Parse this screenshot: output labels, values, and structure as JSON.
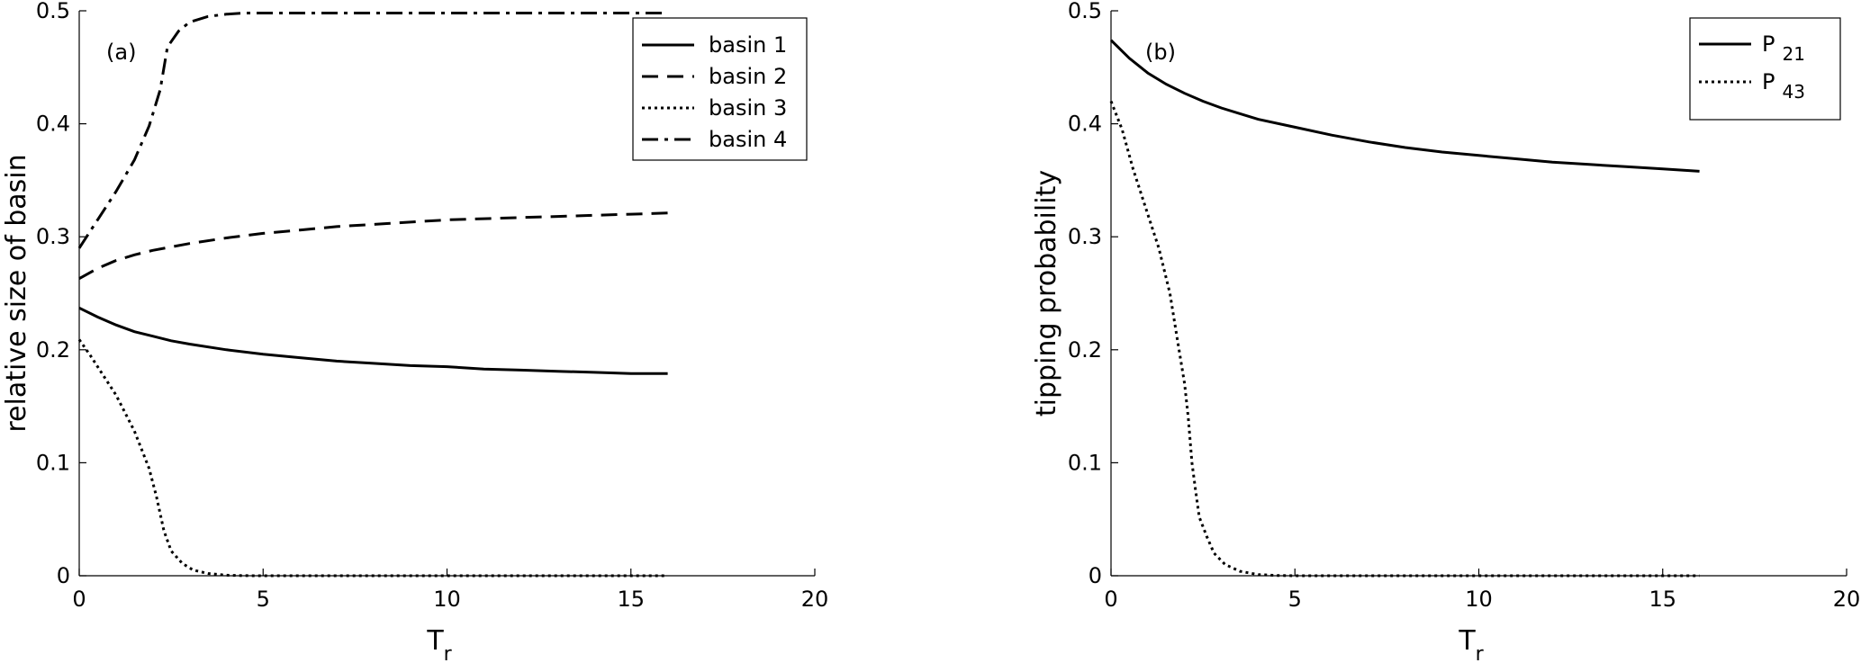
{
  "chart_data": [
    {
      "type": "line",
      "panel_label": "(a)",
      "xlabel": "T",
      "xlabel_sub": "r",
      "ylabel": "relative size of basin",
      "xlim": [
        0,
        20
      ],
      "ylim": [
        0,
        0.5
      ],
      "xticks": [
        0,
        5,
        10,
        15,
        20
      ],
      "yticks": [
        0,
        0.1,
        0.2,
        0.3,
        0.4,
        0.5
      ],
      "xtick_labels": [
        "0",
        "5",
        "10",
        "15",
        "20"
      ],
      "ytick_labels": [
        "0",
        "0.1",
        "0.2",
        "0.3",
        "0.4",
        "0.5"
      ],
      "legend_position": "top-right",
      "series": [
        {
          "name": "basin 1",
          "style": "solid",
          "x": [
            0,
            0.5,
            1,
            1.5,
            2,
            2.5,
            3,
            4,
            5,
            6,
            7,
            8,
            9,
            10,
            11,
            12,
            13,
            14,
            15,
            16
          ],
          "y": [
            0.237,
            0.229,
            0.222,
            0.216,
            0.212,
            0.208,
            0.205,
            0.2,
            0.196,
            0.193,
            0.19,
            0.188,
            0.186,
            0.185,
            0.183,
            0.182,
            0.181,
            0.18,
            0.179,
            0.179
          ]
        },
        {
          "name": "basin 2",
          "style": "dashed",
          "x": [
            0,
            0.5,
            1,
            1.5,
            2,
            2.5,
            3,
            4,
            5,
            6,
            7,
            8,
            9,
            10,
            11,
            12,
            13,
            14,
            15,
            16
          ],
          "y": [
            0.263,
            0.272,
            0.279,
            0.284,
            0.288,
            0.291,
            0.294,
            0.299,
            0.303,
            0.306,
            0.309,
            0.311,
            0.313,
            0.315,
            0.316,
            0.317,
            0.318,
            0.319,
            0.32,
            0.321
          ]
        },
        {
          "name": "basin 3",
          "style": "dotted",
          "x": [
            0,
            0.3,
            0.6,
            1,
            1.5,
            1.9,
            2.1,
            2.3,
            2.5,
            2.8,
            3.1,
            3.5,
            4,
            4.5,
            5,
            6,
            8,
            10,
            12,
            14,
            16
          ],
          "y": [
            0.209,
            0.195,
            0.18,
            0.16,
            0.128,
            0.095,
            0.07,
            0.04,
            0.022,
            0.011,
            0.005,
            0.002,
            0.0005,
            0.0001,
            0,
            0,
            0,
            0,
            0,
            0,
            0
          ]
        },
        {
          "name": "basin 4",
          "style": "dashdot",
          "x": [
            0,
            0.5,
            1,
            1.5,
            1.9,
            2.2,
            2.4,
            2.7,
            3,
            3.5,
            4,
            4.5,
            5,
            6,
            8,
            10,
            12,
            14,
            16
          ],
          "y": [
            0.29,
            0.315,
            0.34,
            0.368,
            0.398,
            0.43,
            0.468,
            0.482,
            0.49,
            0.495,
            0.497,
            0.498,
            0.498,
            0.498,
            0.498,
            0.498,
            0.498,
            0.498,
            0.498
          ]
        }
      ]
    },
    {
      "type": "line",
      "panel_label": "(b)",
      "xlabel": "T",
      "xlabel_sub": "r",
      "ylabel": "tipping probability",
      "xlim": [
        0,
        20
      ],
      "ylim": [
        0,
        0.5
      ],
      "xticks": [
        0,
        5,
        10,
        15,
        20
      ],
      "yticks": [
        0,
        0.1,
        0.2,
        0.3,
        0.4,
        0.5
      ],
      "xtick_labels": [
        "0",
        "5",
        "10",
        "15",
        "20"
      ],
      "ytick_labels": [
        "0",
        "0.1",
        "0.2",
        "0.3",
        "0.4",
        "0.5"
      ],
      "legend_position": "top-right",
      "series": [
        {
          "name": "P",
          "name_sub": "21",
          "style": "solid",
          "x": [
            0,
            0.5,
            1,
            1.5,
            2,
            2.5,
            3,
            4,
            5,
            6,
            7,
            8,
            9,
            10,
            11,
            12,
            13,
            14,
            15,
            16
          ],
          "y": [
            0.474,
            0.458,
            0.445,
            0.435,
            0.427,
            0.42,
            0.414,
            0.404,
            0.397,
            0.39,
            0.384,
            0.379,
            0.375,
            0.372,
            0.369,
            0.366,
            0.364,
            0.362,
            0.36,
            0.358
          ]
        },
        {
          "name": "P",
          "name_sub": "43",
          "style": "dotted",
          "x": [
            0,
            0.3,
            0.6,
            1,
            1.3,
            1.6,
            1.8,
            2.0,
            2.1,
            2.2,
            2.3,
            2.4,
            2.6,
            2.8,
            3.1,
            3.5,
            4,
            4.5,
            5,
            6,
            8,
            10,
            12,
            14,
            16
          ],
          "y": [
            0.42,
            0.395,
            0.36,
            0.32,
            0.29,
            0.25,
            0.21,
            0.17,
            0.14,
            0.1,
            0.075,
            0.052,
            0.035,
            0.02,
            0.01,
            0.004,
            0.001,
            0.0002,
            0,
            0,
            0,
            0,
            0,
            0,
            0
          ]
        }
      ]
    }
  ]
}
